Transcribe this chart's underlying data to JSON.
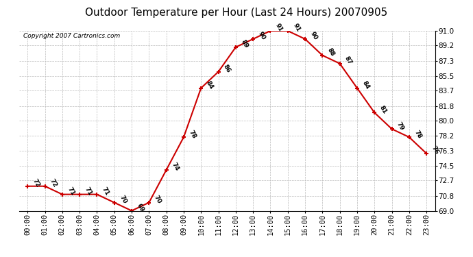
{
  "title": "Outdoor Temperature per Hour (Last 24 Hours) 20070905",
  "copyright": "Copyright 2007 Cartronics.com",
  "hours": [
    "00:00",
    "01:00",
    "02:00",
    "03:00",
    "04:00",
    "05:00",
    "06:00",
    "07:00",
    "08:00",
    "09:00",
    "10:00",
    "11:00",
    "12:00",
    "13:00",
    "14:00",
    "15:00",
    "16:00",
    "17:00",
    "18:00",
    "19:00",
    "20:00",
    "21:00",
    "22:00",
    "23:00"
  ],
  "temps": [
    72,
    72,
    71,
    71,
    71,
    70,
    69,
    70,
    74,
    78,
    84,
    86,
    89,
    90,
    91,
    91,
    90,
    88,
    87,
    84,
    81,
    79,
    78,
    76
  ],
  "line_color": "#cc0000",
  "marker_color": "#cc0000",
  "bg_color": "#ffffff",
  "grid_color": "#bbbbbb",
  "ylim_min": 69.0,
  "ylim_max": 91.0,
  "yticks": [
    69.0,
    70.8,
    72.7,
    74.5,
    76.3,
    78.2,
    80.0,
    81.8,
    83.7,
    85.5,
    87.3,
    89.2,
    91.0
  ],
  "title_fontsize": 11,
  "copyright_fontsize": 6.5,
  "label_fontsize": 6.5,
  "tick_fontsize": 7.5
}
